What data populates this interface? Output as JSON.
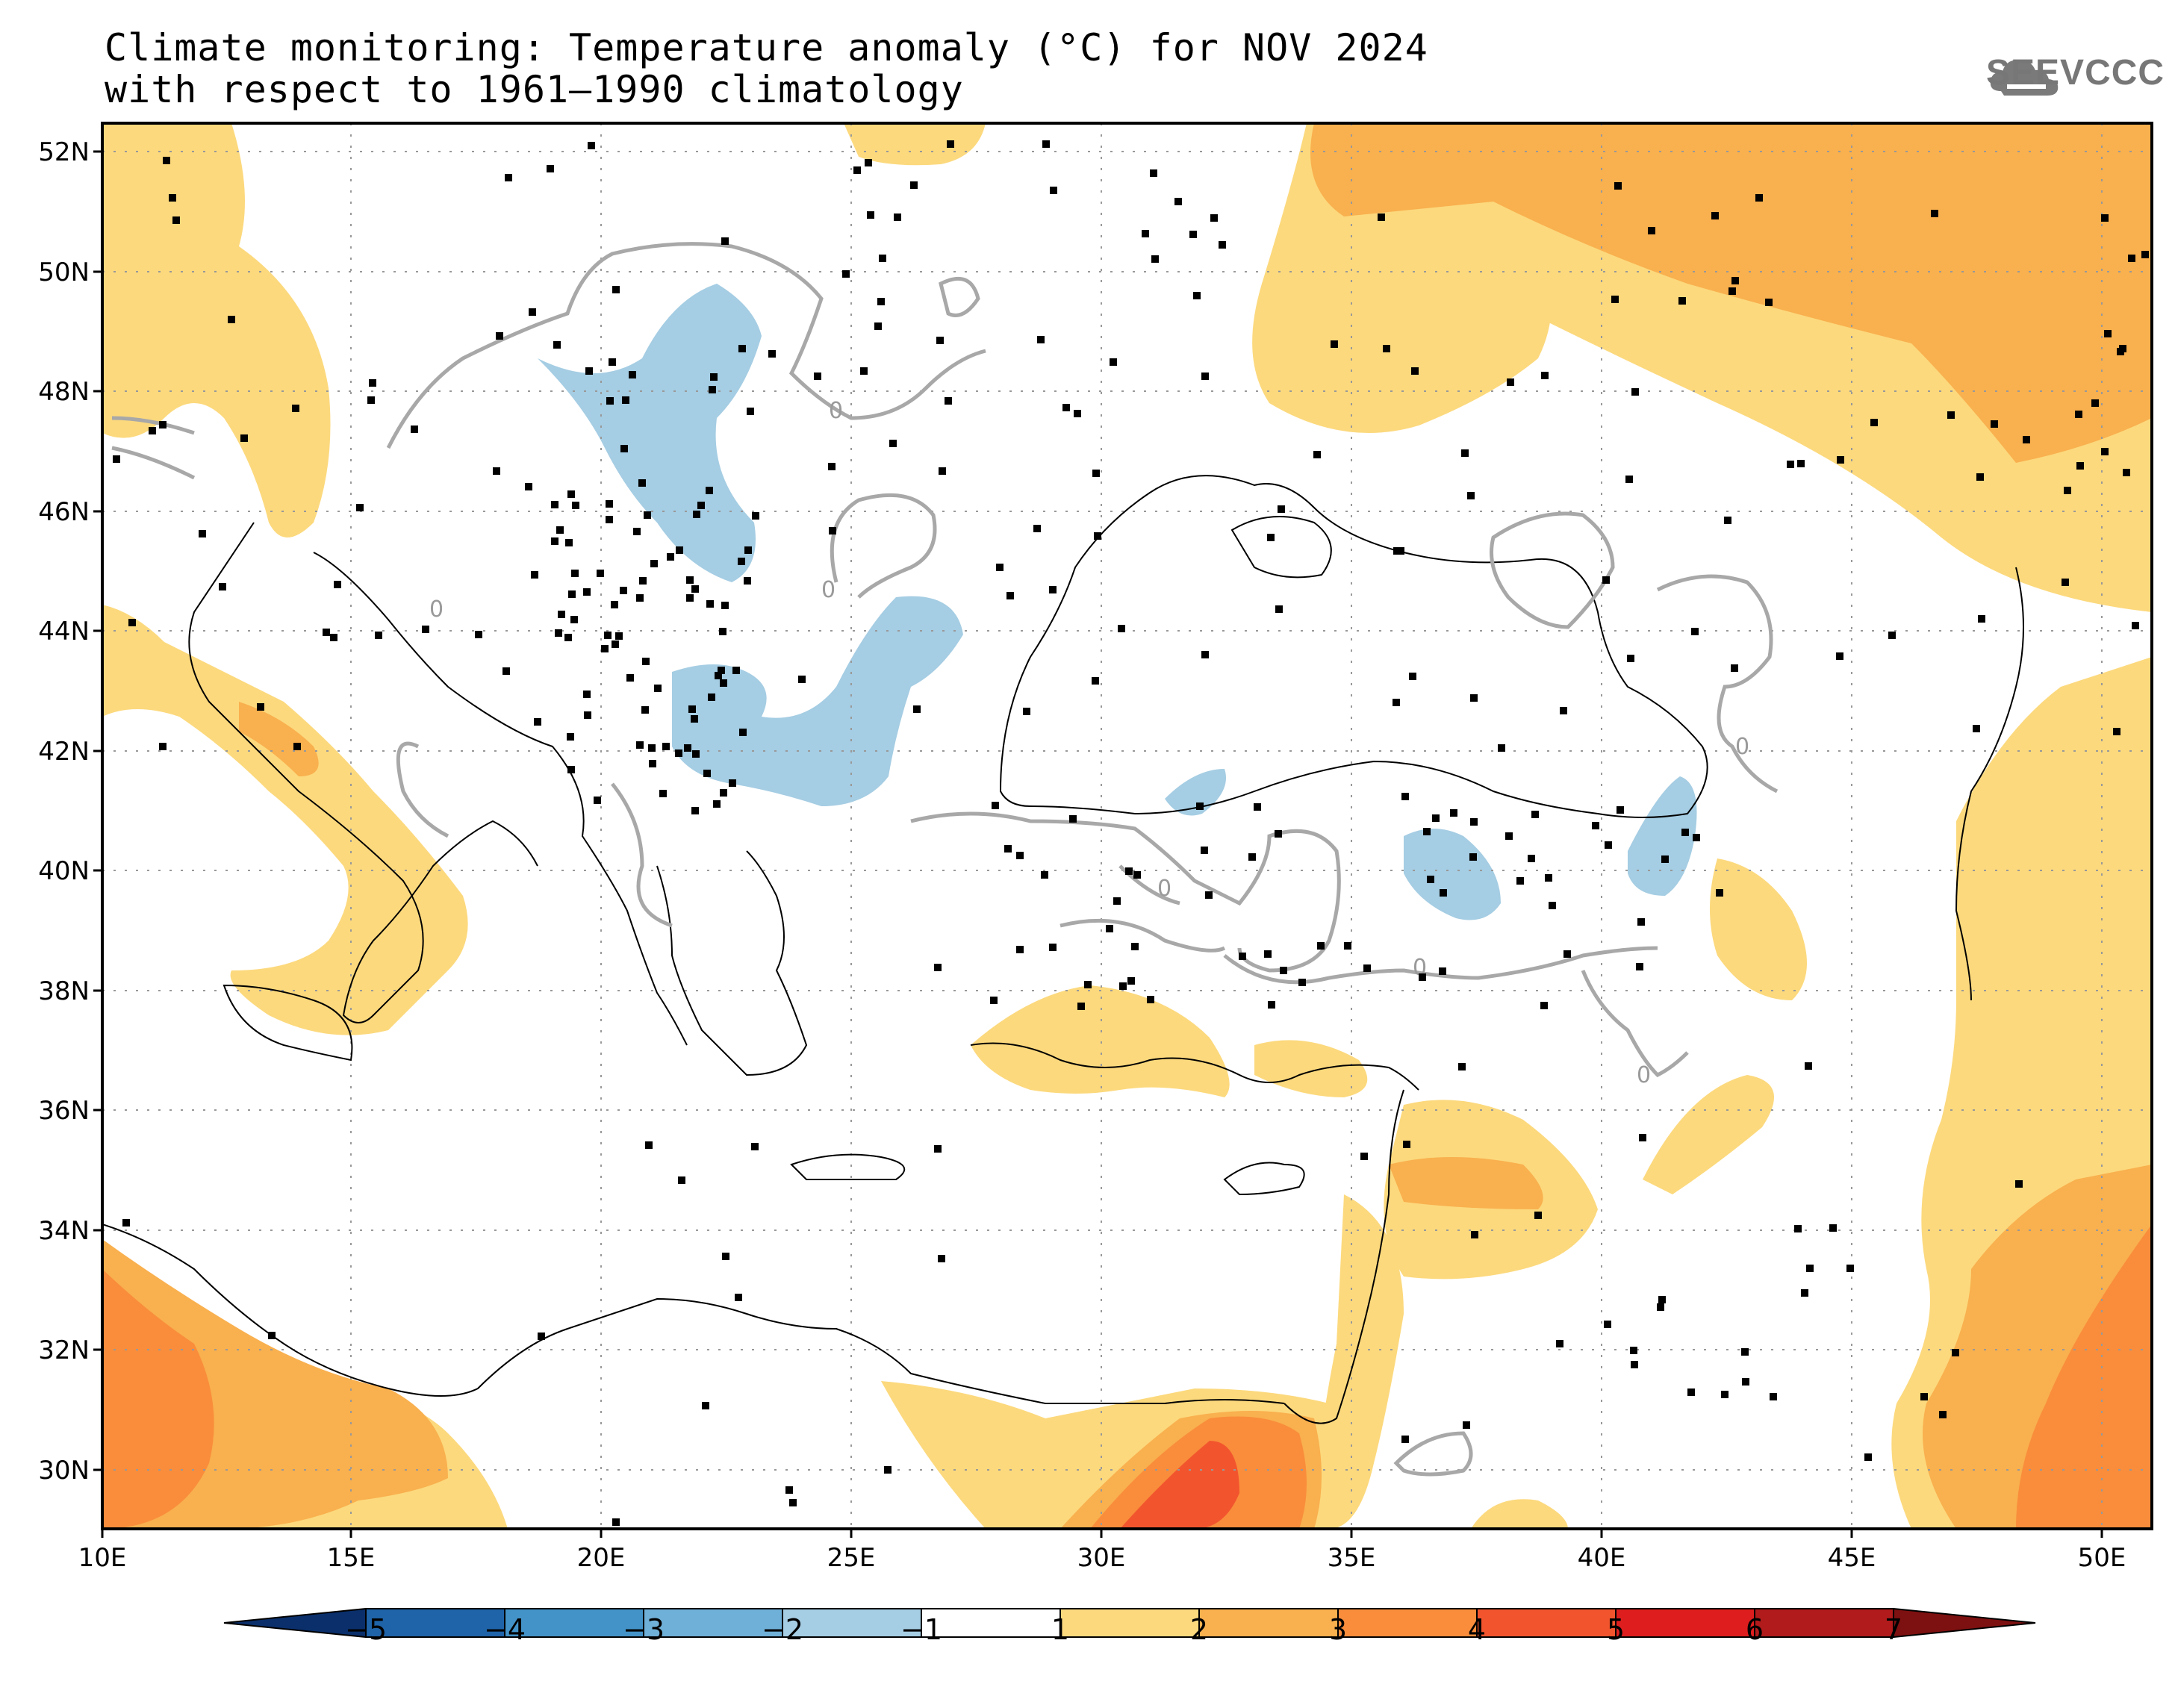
{
  "title": {
    "line1": "Climate monitoring: Temperature anomaly (°C) for NOV 2024",
    "line2": "with respect to 1961–1990 climatology"
  },
  "logo": {
    "text": "SEEVCCC",
    "icon": "cloud-icon"
  },
  "map": {
    "lat_labels": [
      "52N",
      "50N",
      "48N",
      "46N",
      "44N",
      "42N",
      "40N",
      "38N",
      "36N",
      "34N",
      "32N",
      "30N"
    ],
    "lon_labels": [
      "10E",
      "15E",
      "20E",
      "25E",
      "30E",
      "35E",
      "40E",
      "45E",
      "50E"
    ],
    "contour_labels": [
      "0"
    ],
    "lat_range": [
      29,
      52.5
    ],
    "lon_range": [
      10,
      51
    ]
  },
  "colorbar": {
    "labels": [
      "−5",
      "−4",
      "−3",
      "−2",
      "−1",
      "1",
      "2",
      "3",
      "4",
      "5",
      "6",
      "7"
    ],
    "colors": [
      "#0a2f6b",
      "#1f63a8",
      "#4393c8",
      "#6fb0d8",
      "#a5cde3",
      "#ffffff",
      "#fcd97d",
      "#f9b04e",
      "#f98d3b",
      "#f2552e",
      "#de1e1e",
      "#b11b1b",
      "#7d1010"
    ]
  },
  "colors": {
    "warm1": "#fcd97d",
    "warm2": "#f9b04e",
    "warm3": "#f98d3b",
    "warm4": "#f2552e",
    "cool1": "#a5cde3",
    "contour": "#a8a8a8"
  }
}
